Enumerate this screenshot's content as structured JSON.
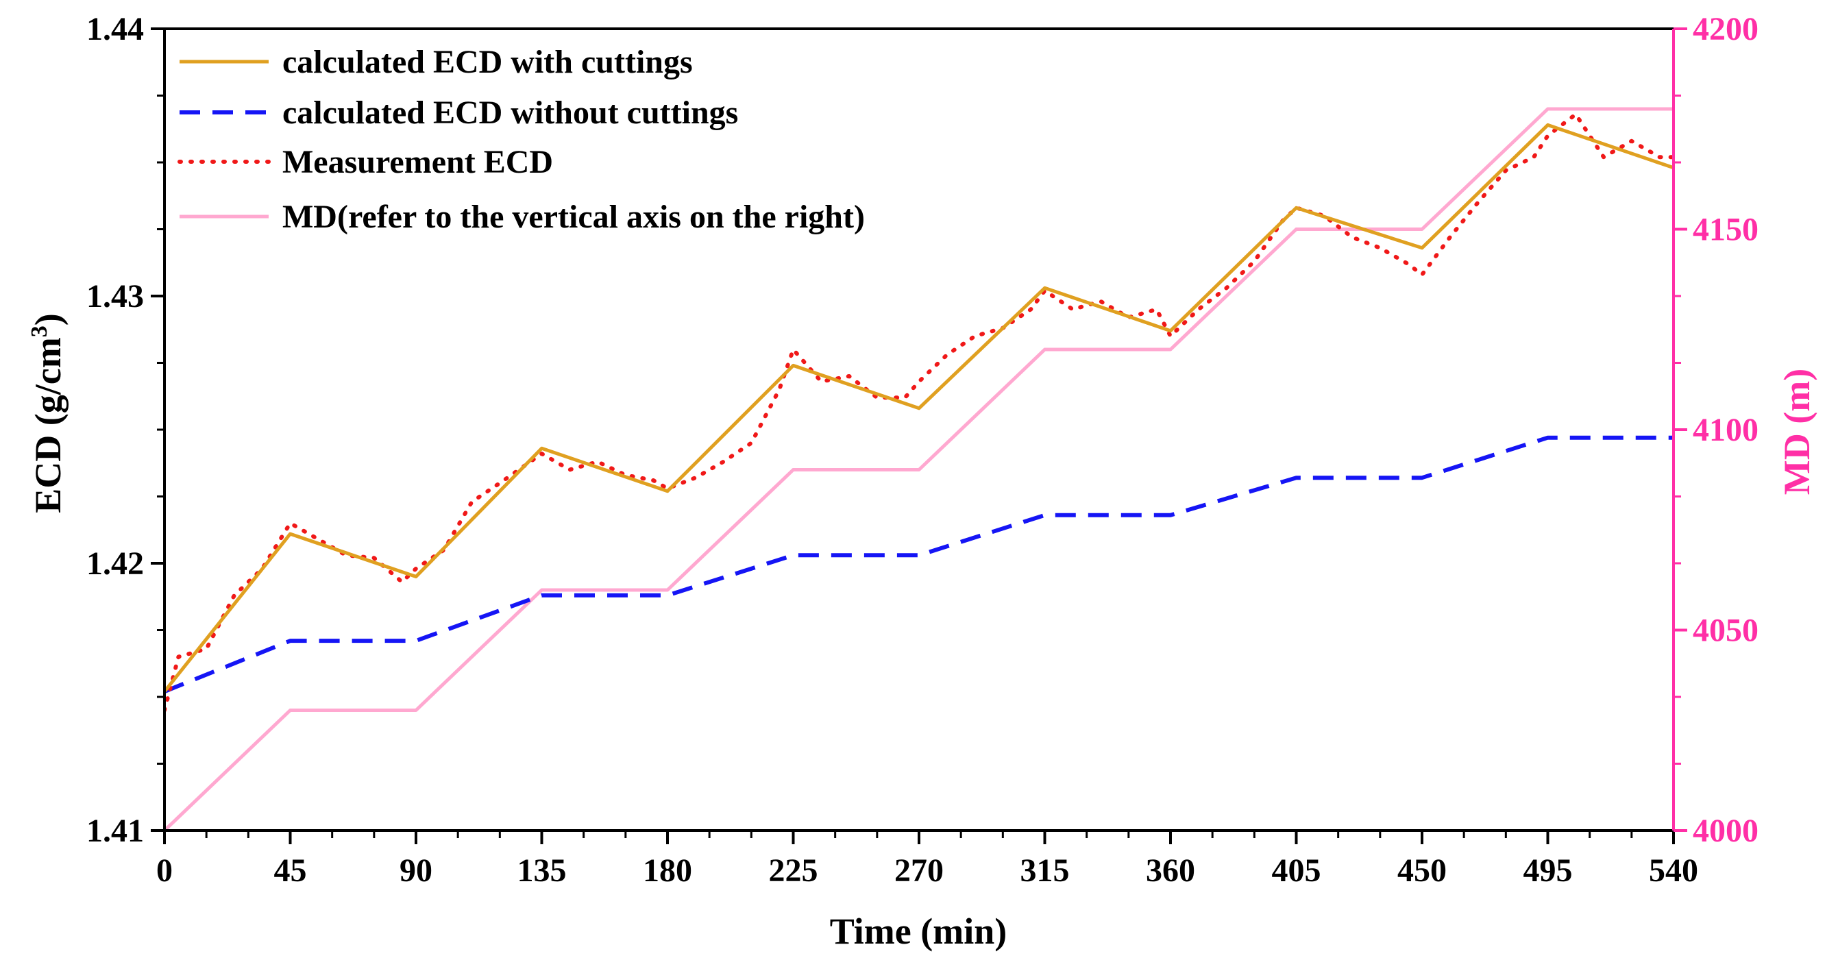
{
  "chart_data": {
    "type": "line",
    "title": "",
    "xlabel": "Time (min)",
    "ylabel": "ECD (g/cm",
    "ylabel_sup": "3",
    "ylabel_close": ")",
    "y2label": "MD (m)",
    "xlim": [
      0,
      540
    ],
    "ylim": [
      1.41,
      1.44
    ],
    "y2lim": [
      4000,
      4200
    ],
    "x_ticks": [
      0,
      45,
      90,
      135,
      180,
      225,
      270,
      315,
      360,
      405,
      450,
      495,
      540
    ],
    "x_tick_labels": [
      "0",
      "45",
      "90",
      "135",
      "180",
      "225",
      "270",
      "315",
      "360",
      "405",
      "450",
      "495",
      "540"
    ],
    "y_ticks": [
      1.41,
      1.42,
      1.43,
      1.44
    ],
    "y_tick_labels": [
      "1.41",
      "1.42",
      "1.43",
      "1.44"
    ],
    "y2_ticks": [
      4000,
      4050,
      4100,
      4150,
      4200
    ],
    "y2_tick_labels": [
      "4000",
      "4050",
      "4100",
      "4150",
      "4200"
    ],
    "legend_position": "top-left",
    "colors": {
      "with_cuttings": "#E0A020",
      "without_cuttings": "#1515F5",
      "measurement": "#F01818",
      "md": "#FFA8D0",
      "y2_axis": "#FF2FA6",
      "axis": "#000000"
    },
    "series": [
      {
        "name": "calculated ECD with cuttings",
        "axis": "left",
        "style": "solid",
        "x": [
          0,
          45,
          90,
          135,
          180,
          225,
          270,
          315,
          360,
          405,
          450,
          495,
          540
        ],
        "y": [
          1.4152,
          1.4211,
          1.4195,
          1.4243,
          1.4227,
          1.4274,
          1.4258,
          1.4303,
          1.4287,
          1.4333,
          1.4318,
          1.4364,
          1.4348
        ]
      },
      {
        "name": "calculated ECD without cuttings",
        "axis": "left",
        "style": "dashed",
        "x": [
          0,
          45,
          90,
          135,
          180,
          225,
          270,
          315,
          360,
          405,
          450,
          495,
          540
        ],
        "y": [
          1.4152,
          1.4171,
          1.4171,
          1.4188,
          1.4188,
          1.4203,
          1.4203,
          1.4218,
          1.4218,
          1.4232,
          1.4232,
          1.4247,
          1.4247
        ]
      },
      {
        "name": "Measurement ECD",
        "axis": "left",
        "style": "dotted",
        "x": [
          0,
          5,
          15,
          25,
          35,
          45,
          55,
          65,
          75,
          85,
          90,
          100,
          110,
          120,
          135,
          145,
          155,
          165,
          175,
          180,
          190,
          200,
          210,
          220,
          225,
          235,
          245,
          255,
          265,
          270,
          280,
          290,
          300,
          310,
          315,
          325,
          335,
          345,
          355,
          360,
          370,
          380,
          390,
          400,
          405,
          415,
          425,
          435,
          445,
          450,
          460,
          470,
          480,
          490,
          495,
          505,
          515,
          525,
          535,
          540
        ],
        "y": [
          1.4145,
          1.4165,
          1.4168,
          1.4188,
          1.4198,
          1.4215,
          1.4209,
          1.4203,
          1.4202,
          1.4193,
          1.4198,
          1.4205,
          1.4223,
          1.423,
          1.4241,
          1.4235,
          1.4238,
          1.4233,
          1.4231,
          1.4228,
          1.4232,
          1.4238,
          1.4245,
          1.4265,
          1.428,
          1.4268,
          1.427,
          1.4262,
          1.4262,
          1.4268,
          1.4278,
          1.4285,
          1.4288,
          1.4295,
          1.4302,
          1.4295,
          1.4298,
          1.4292,
          1.4295,
          1.4285,
          1.4295,
          1.4303,
          1.4313,
          1.4328,
          1.4333,
          1.433,
          1.4322,
          1.4318,
          1.4312,
          1.4308,
          1.4322,
          1.4335,
          1.4347,
          1.4352,
          1.436,
          1.4368,
          1.4352,
          1.4358,
          1.4352,
          1.4352
        ]
      },
      {
        "name": "MD(refer to the vertical axis on the right)",
        "axis": "right",
        "style": "solid",
        "x": [
          0,
          45,
          90,
          135,
          180,
          225,
          270,
          315,
          360,
          405,
          450,
          495,
          540
        ],
        "y": [
          4000,
          4030,
          4030,
          4060,
          4060,
          4090,
          4090,
          4120,
          4120,
          4150,
          4150,
          4180,
          4180
        ]
      }
    ]
  }
}
